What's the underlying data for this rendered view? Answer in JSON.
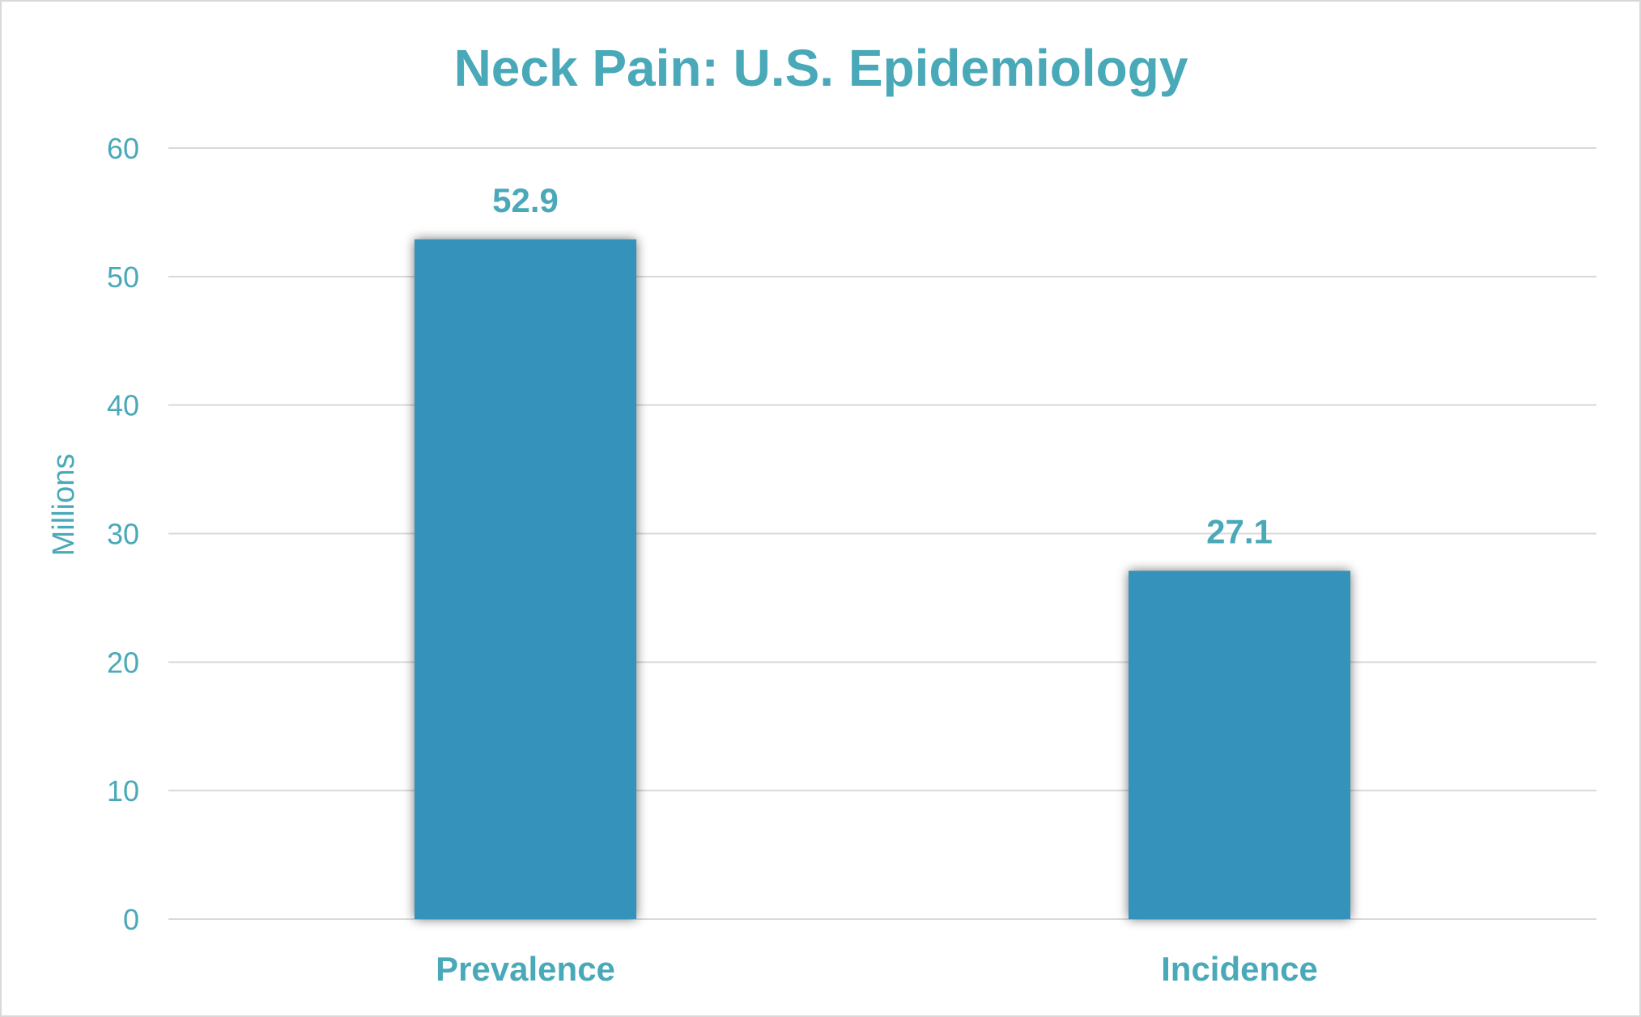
{
  "chart_data": {
    "type": "bar",
    "title": "Neck Pain: U.S. Epidemiology",
    "xlabel": "",
    "ylabel": "Millions",
    "categories": [
      "Prevalence",
      "Incidence"
    ],
    "values": [
      52.9,
      27.1
    ],
    "data_labels": [
      "52.9",
      "27.1"
    ],
    "ylim": [
      0,
      60
    ],
    "yticks": [
      0,
      10,
      20,
      30,
      40,
      50,
      60
    ],
    "ytick_labels": [
      "0",
      "10",
      "20",
      "30",
      "40",
      "50",
      "60"
    ],
    "grid": true,
    "legend": "none"
  },
  "colors": {
    "bar": "#3592ba",
    "text": "#4aa9b8",
    "grid": "#d9d9d9",
    "frame": "#d9d9d9"
  }
}
